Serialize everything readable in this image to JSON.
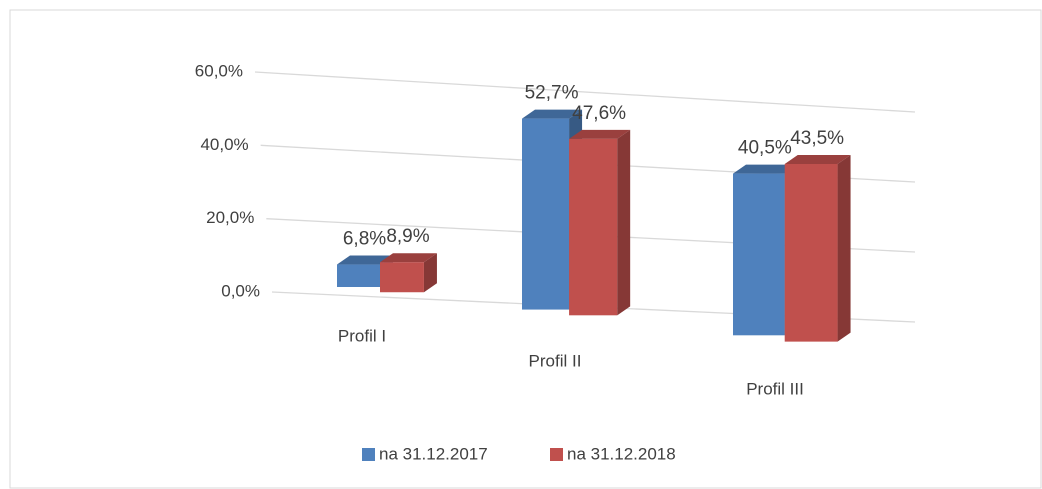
{
  "chart_data": {
    "type": "bar3d",
    "categories": [
      "Profil I",
      "Profil II",
      "Profil III"
    ],
    "series": [
      {
        "name": "na 31.12.2017",
        "color": "#4f81bd",
        "values": [
          6.8,
          52.7,
          40.5
        ],
        "value_labels": [
          "6,8%",
          "52,7%",
          "40,5%"
        ]
      },
      {
        "name": "na 31.12.2018",
        "color": "#c0504d",
        "values": [
          8.9,
          47.6,
          43.5
        ],
        "value_labels": [
          "8,9%",
          "47,6%",
          "43,5%"
        ]
      }
    ],
    "ylim": [
      0,
      60
    ],
    "yticks": [
      {
        "value": 0,
        "label": "0,0%"
      },
      {
        "value": 20,
        "label": "20,0%"
      },
      {
        "value": 40,
        "label": "40,0%"
      },
      {
        "value": 60,
        "label": "60,0%"
      }
    ],
    "grid": true,
    "legend": "bottom"
  }
}
